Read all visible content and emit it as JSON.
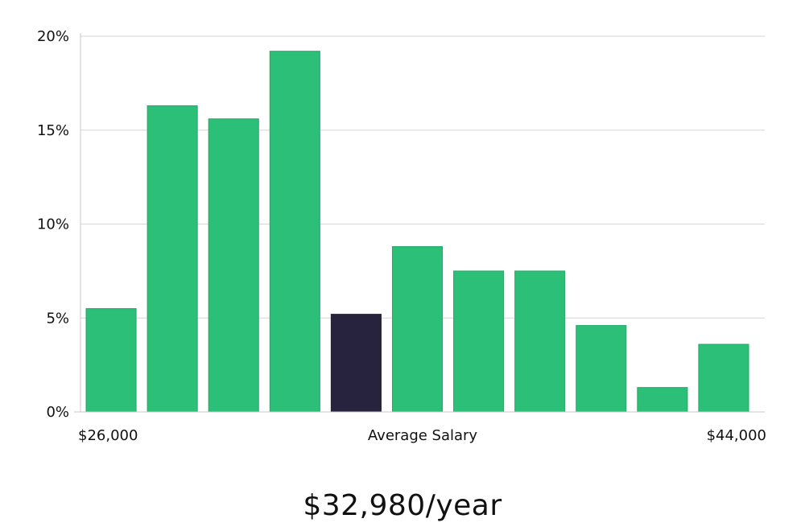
{
  "chart_data": {
    "type": "bar",
    "values": [
      5.5,
      16.3,
      15.6,
      19.2,
      5.2,
      8.8,
      7.5,
      7.5,
      4.6,
      1.3,
      3.6
    ],
    "highlight_index": 4,
    "ylim": [
      0,
      20
    ],
    "yticks": [
      0,
      5,
      10,
      15,
      20
    ],
    "ytick_labels": [
      "0%",
      "5%",
      "10%",
      "15%",
      "20%"
    ],
    "x_labels": {
      "left": "$26,000",
      "center": "Average Salary",
      "right": "$44,000"
    },
    "grid": true,
    "colors": {
      "bar": "#2bbf77",
      "bar_edge": "#23aa68",
      "highlight": "#27233f",
      "grid": "#d6d6d6",
      "axis": "#c8c8c8"
    }
  },
  "summary": {
    "salary": "$32,980/year"
  }
}
